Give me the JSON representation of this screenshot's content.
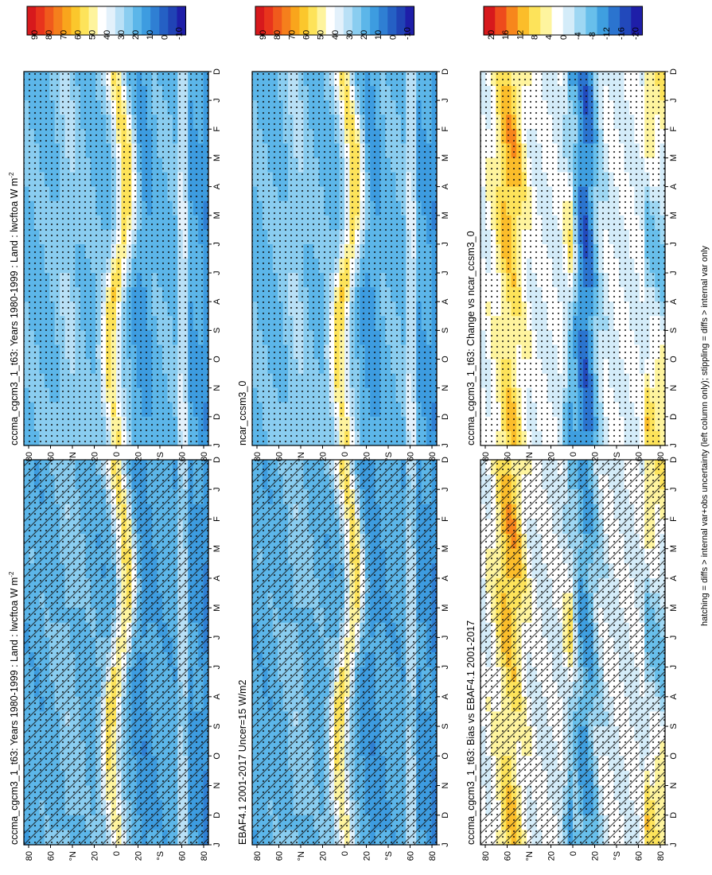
{
  "footnote": "hatching = diffs > internal var+obs uncertainty (left column only); stippling = diffs > internal var only",
  "colors": {
    "raw_scale": [
      "#d7191c",
      "#e8341c",
      "#f05a1c",
      "#f57f1c",
      "#f9a51c",
      "#fbc72c",
      "#fde35a",
      "#fef49e",
      "#ffffff",
      "#e3f1fb",
      "#b9e0f6",
      "#8acdf0",
      "#5cb6e9",
      "#3d9ce0",
      "#2f7fd3",
      "#2560c4",
      "#2043b5",
      "#1e1ea8"
    ],
    "diff_scale": [
      "#d7191c",
      "#ee4b1c",
      "#f7861c",
      "#fbbd2a",
      "#fde35a",
      "#fef49e",
      "#ffffff",
      "#d4ecf9",
      "#9ed7f3",
      "#68bfeb",
      "#3f9fe0",
      "#2b74cf",
      "#2249bb",
      "#1e1ea8"
    ]
  },
  "colorbars": {
    "raw": {
      "labels": [
        "90",
        "80",
        "70",
        "60",
        "50",
        "40",
        "30",
        "20",
        "10",
        "0",
        "-10"
      ]
    },
    "diff": {
      "labels": [
        "20",
        "16",
        "12",
        "8",
        "4",
        "0",
        "-4",
        "-8",
        "-12",
        "-16",
        "-20"
      ]
    }
  },
  "axes": {
    "months": [
      "D",
      "J",
      "F",
      "M",
      "A",
      "M",
      "J",
      "J",
      "A",
      "S",
      "O",
      "N",
      "D",
      "J"
    ],
    "lat_ticks": [
      "80",
      "60",
      "°N",
      "20",
      "0",
      "20",
      "°S",
      "60",
      "80"
    ]
  },
  "chart_data": [
    {
      "type": "heatmap",
      "panel": "left-top",
      "title": "cccma_cgcm3_1_t63: Years 1980-1999 : Land : lwcftoa W m",
      "title_sup": "-2",
      "x": "month",
      "y": "latitude",
      "scale": "raw",
      "range": [
        -10,
        95
      ],
      "hatching": true,
      "stippling": true
    },
    {
      "type": "heatmap",
      "panel": "right-top",
      "title": "cccma_cgcm3_1_t63: Years 1980-1999 : Land : lwcftoa W m",
      "title_sup": "-2",
      "x": "month",
      "y": "latitude",
      "scale": "raw",
      "range": [
        -10,
        95
      ],
      "hatching": false,
      "stippling": true
    },
    {
      "type": "heatmap",
      "panel": "left-middle",
      "title": "EBAF4.1 2001-2017 Uncer=15 W/m2",
      "title_sup": "",
      "x": "month",
      "y": "latitude",
      "scale": "raw",
      "range": [
        -10,
        95
      ],
      "hatching": true,
      "stippling": true
    },
    {
      "type": "heatmap",
      "panel": "right-middle",
      "title": "ncar_ccsm3_0",
      "title_sup": "",
      "x": "month",
      "y": "latitude",
      "scale": "raw",
      "range": [
        -10,
        95
      ],
      "hatching": false,
      "stippling": true
    },
    {
      "type": "heatmap",
      "panel": "left-bottom",
      "title": "cccma_cgcm3_1_t63: Bias vs EBAF4.1 2001-2017",
      "title_sup": "",
      "x": "month",
      "y": "latitude",
      "scale": "diff",
      "range": [
        -22,
        22
      ],
      "hatching": true,
      "stippling": true
    },
    {
      "type": "heatmap",
      "panel": "right-bottom",
      "title": "cccma_cgcm3_1_t63: Change vs ncar_ccsm3_0",
      "title_sup": "",
      "x": "month",
      "y": "latitude",
      "scale": "diff",
      "range": [
        -22,
        22
      ],
      "hatching": false,
      "stippling": true
    }
  ]
}
